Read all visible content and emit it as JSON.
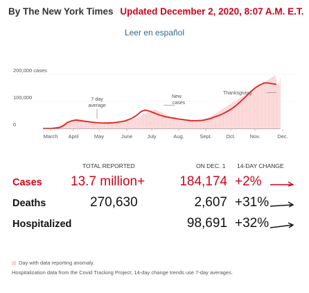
{
  "byline": {
    "author": "By The New York Times",
    "updated": "Updated December 2, 2020, 8:07 A.M. E.T."
  },
  "spanish_link": "Leer en español",
  "chart_data": {
    "type": "bar",
    "title": "",
    "x_tick_labels": [
      "March",
      "April",
      "May",
      "June",
      "July",
      "Aug.",
      "Sept.",
      "Oct.",
      "Nov.",
      "Dec."
    ],
    "y_tick_labels": [
      "200,000 cases",
      "100,000",
      "0"
    ],
    "ylim": [
      0,
      200000
    ],
    "series": [
      {
        "kind": "bars",
        "values": [
          0,
          0,
          0,
          0,
          0,
          0,
          0,
          0,
          1000,
          1400,
          1800,
          2200,
          2600,
          3400,
          4300,
          5600,
          7000,
          8500,
          10000,
          11000,
          12500,
          13500,
          15000,
          17000,
          19000,
          20500,
          22000,
          23500,
          25500,
          27000,
          26500,
          28000,
          29000,
          30000,
          31500,
          32500,
          33000,
          33500,
          34500,
          35000,
          36000,
          35500,
          35000,
          34000,
          33500,
          33000,
          32500,
          31500,
          31000,
          30500,
          30000,
          29500,
          28500,
          28000,
          27500,
          27000,
          26500,
          26000,
          25500,
          25000,
          24500,
          24000,
          23500,
          23000,
          22500,
          22000,
          22000,
          21500,
          21500,
          21000,
          21000,
          21000,
          20500,
          20500,
          20500,
          20000,
          20000,
          20000,
          20500,
          20500,
          21000,
          21000,
          21500,
          22000,
          22500,
          22500,
          23000,
          24000,
          24500,
          25000,
          25000,
          25500,
          26000,
          26500,
          27000,
          27500,
          28000,
          28000,
          28500,
          29000,
          29500,
          30000,
          30500,
          31000,
          31500,
          32000,
          32500,
          33500,
          34500,
          35500,
          37000,
          38500,
          40000,
          42000,
          44000,
          46000,
          48000,
          50000,
          52000,
          53000,
          54500,
          56000,
          57500,
          59000,
          60500,
          62000,
          63500,
          65000,
          66500,
          67500,
          68500,
          69000,
          69500,
          69000,
          68000,
          66500,
          65000,
          63500,
          62000,
          60500,
          59000,
          57500,
          56000,
          54500,
          53000,
          51500,
          50000,
          48500,
          47000,
          46000,
          45000,
          44000,
          43000,
          42000,
          41000,
          40000,
          39000,
          38500,
          38000,
          37500,
          37000,
          36500,
          36000,
          35500,
          35000,
          34500,
          34000,
          33500,
          33000,
          32500,
          32000,
          31500,
          31000,
          30500,
          30000,
          29500,
          29000,
          28500,
          28000,
          28000,
          28500,
          29000,
          29500,
          30000,
          30500,
          31000,
          31500,
          32000,
          33000,
          34000,
          35000,
          36000,
          37500,
          39000,
          40000,
          41500,
          43000,
          44000,
          45500,
          47000,
          48500,
          50000,
          52000,
          54000,
          56000,
          58000,
          60000,
          62000,
          64000,
          66000,
          68000,
          70000,
          72000,
          74000,
          76000,
          78000,
          80000,
          82000,
          84000,
          86000,
          88000,
          90000,
          92000,
          94000,
          96000,
          98000,
          100000,
          102000,
          104000,
          106000,
          108000,
          110000,
          112000,
          114000,
          116000,
          118000,
          120000,
          122000,
          124000,
          126000,
          128000,
          130000,
          132000,
          134000,
          136000,
          138000,
          140000,
          142000,
          144000,
          146000,
          148000,
          150000,
          152000,
          154000,
          156000,
          158000,
          160000,
          162000,
          164000,
          166000,
          168000,
          170000,
          172000,
          174000,
          176000,
          178000,
          180000,
          182000,
          184000,
          186000,
          188000,
          190000,
          192000,
          194000,
          196000,
          184000,
          160000,
          165000,
          170000,
          160000,
          184174
        ]
      },
      {
        "kind": "7-day average line",
        "values": [
          0,
          0,
          0,
          1500,
          3000,
          10000,
          22000,
          28000,
          31000,
          29000,
          27000,
          25000,
          23000,
          21500,
          20500,
          20000,
          20000,
          21000,
          22500,
          25000,
          28000,
          33000,
          40000,
          50000,
          63000,
          68000,
          64000,
          58000,
          52000,
          47000,
          43000,
          40000,
          38000,
          35000,
          33000,
          31000,
          29000,
          28500,
          29000,
          30000,
          33000,
          37000,
          43000,
          48000,
          55000,
          63000,
          72000,
          83000,
          96000,
          110000,
          125000,
          140000,
          152000,
          161000,
          168000,
          168000,
          165000,
          163000
        ]
      }
    ],
    "annotations": [
      "7-day average",
      "New cases",
      "Thanksgiving"
    ]
  },
  "table": {
    "headers": {
      "total": "TOTAL REPORTED",
      "on_day": "ON DEC. 1",
      "change": "14-DAY CHANGE"
    },
    "rows": [
      {
        "label": "Cases",
        "total": "13.7 million+",
        "on_day": "184,174",
        "change": "+2%",
        "trend_icon": "rising-arrow-icon",
        "highlight": true
      },
      {
        "label": "Deaths",
        "total": "270,630",
        "on_day": "2,607",
        "change": "+31%",
        "trend_icon": "rising-arrow-icon",
        "highlight": false
      },
      {
        "label": "Hospitalized",
        "total": "",
        "on_day": "98,691",
        "change": "+32%",
        "trend_icon": "rising-arrow-icon",
        "highlight": false
      }
    ]
  },
  "legend": {
    "anomaly": "Day with data reporting anomaly."
  },
  "note": "Hospitalization data from the Covid Tracking Project; 14-day change trends use 7-day averages.",
  "colors": {
    "accent_red": "#d0021b",
    "bar_fill": "#fbd3d4",
    "line": "#e31d1a",
    "link": "#326891"
  }
}
